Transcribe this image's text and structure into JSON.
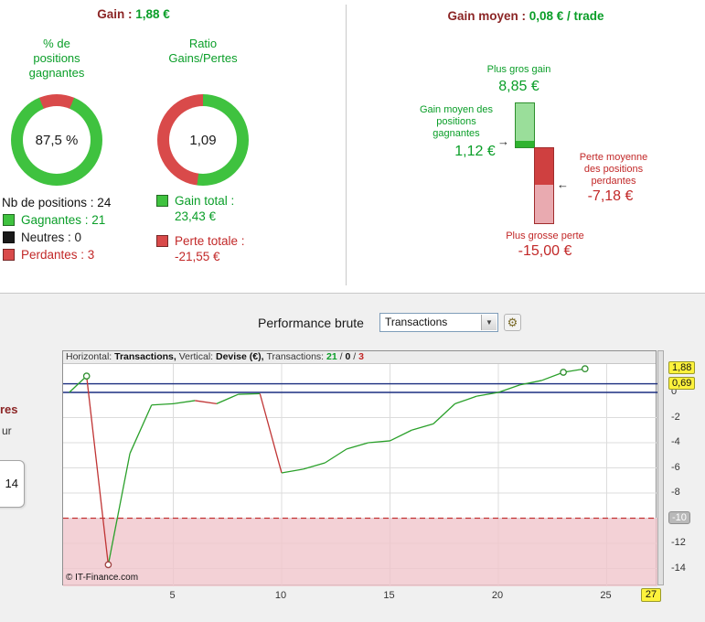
{
  "left_panel": {
    "header": {
      "label": "Gain :",
      "value": "1,88 €"
    },
    "donut_win": {
      "title": "% de\npositions\ngagnantes",
      "center": "87,5 %",
      "green_pct": 87.5,
      "green": "#3fc23f",
      "red": "#d94a4a"
    },
    "donut_ratio": {
      "title": "Ratio\nGains/Pertes",
      "center": "1,09",
      "green_pct": 52.1,
      "green": "#3fc23f",
      "red": "#d94a4a"
    },
    "positions": {
      "label": "Nb de positions : 24",
      "items": [
        {
          "label": "Gagnantes : 21",
          "color": "#3fc23f"
        },
        {
          "label": "Neutres : 0",
          "color": "#1a1a1a"
        },
        {
          "label": "Perdantes : 3",
          "color": "#d94a4a"
        }
      ]
    },
    "totals": [
      {
        "label": "Gain total :",
        "value": "23,43 €",
        "color": "#3fc23f"
      },
      {
        "label": "Perte totale :",
        "value": "-21,55 €",
        "color": "#d94a4a"
      }
    ]
  },
  "right_panel": {
    "header": {
      "label": "Gain moyen :",
      "value": "0,08 € / trade"
    },
    "bars": {
      "max_gain": {
        "label": "Plus gros gain",
        "value": "8,85 €"
      },
      "avg_gain": {
        "label": "Gain moyen des\npositions\ngagnantes",
        "value": "1,12 €",
        "arrow": "→"
      },
      "avg_loss": {
        "label": "Perte moyenne\ndes positions\nperdantes",
        "value": "-7,18 €",
        "arrow": "←"
      },
      "max_loss": {
        "label": "Plus grosse perte",
        "value": "-15,00 €"
      }
    },
    "bars_numeric": {
      "max_gain": 8.85,
      "avg_gain": 1.12,
      "avg_loss": -7.18,
      "max_loss": -15.0
    },
    "bar_colors": {
      "gain_light": "#9ade9a",
      "gain_dark": "#2fb32f",
      "gain_border": "#2d8f2d",
      "loss_dark": "#cf4040",
      "loss_light": "#e9aab0",
      "loss_border": "#a02c2c"
    }
  },
  "toolbar": {
    "title": "Performance brute",
    "dropdown_value": "Transactions",
    "settings_icon": "⚙",
    "chevron": "▼"
  },
  "side_fragment": {
    "line1": "res",
    "line2": "ur",
    "box_value": "14"
  },
  "chart_data": {
    "type": "line",
    "title": "Performance brute",
    "header_parts": [
      {
        "text": "Horizontal: ",
        "style": "plain"
      },
      {
        "text": "Transactions, ",
        "style": "bold"
      },
      {
        "text": "Vertical: ",
        "style": "plain"
      },
      {
        "text": "Devise (€), ",
        "style": "bold"
      },
      {
        "text": "Transactions: ",
        "style": "plain"
      },
      {
        "text": "21",
        "style": "green"
      },
      {
        "text": " / ",
        "style": "plain"
      },
      {
        "text": "0",
        "style": "bold"
      },
      {
        "text": " / ",
        "style": "plain"
      },
      {
        "text": "3",
        "style": "red"
      }
    ],
    "xlabel": "Transactions",
    "ylabel": "Devise (€)",
    "x": [
      1,
      2,
      3,
      4,
      5,
      6,
      7,
      8,
      9,
      10,
      11,
      12,
      13,
      14,
      15,
      16,
      17,
      18,
      19,
      20,
      21,
      22,
      23,
      24
    ],
    "values": [
      1.3,
      -13.7,
      -4.85,
      -1.0,
      -0.9,
      -0.65,
      -0.9,
      -0.15,
      -0.1,
      -6.4,
      -6.1,
      -5.6,
      -4.5,
      -4.0,
      -3.85,
      -3.0,
      -2.5,
      -0.9,
      -0.3,
      0.0,
      0.6,
      0.95,
      1.6,
      1.88
    ],
    "start_point": {
      "x": 0.2,
      "y": 0
    },
    "markers": [
      1,
      2,
      23,
      24
    ],
    "x_ticks": [
      5,
      10,
      15,
      20,
      25
    ],
    "x_badge": {
      "x": 27,
      "label": "27"
    },
    "y_ticks": [
      {
        "v": 0,
        "label": "0"
      },
      {
        "v": -2,
        "label": "-2"
      },
      {
        "v": -4,
        "label": "-4"
      },
      {
        "v": -6,
        "label": "-6"
      },
      {
        "v": -8,
        "label": "-8"
      },
      {
        "v": -10,
        "label": "-10",
        "badge": "gray"
      },
      {
        "v": -12,
        "label": "-12"
      },
      {
        "v": -14,
        "label": "-14"
      }
    ],
    "y_badges": [
      {
        "v": 1.88,
        "label": "1,88"
      },
      {
        "v": 0.69,
        "label": "0,69"
      }
    ],
    "levels": [
      {
        "v": 0.69,
        "color": "#1c2f80"
      },
      {
        "v": 0,
        "color": "#1c2f80"
      }
    ],
    "risk_level": -10,
    "xlim": [
      0,
      27
    ],
    "ylim": [
      -15.4,
      3.3
    ],
    "grid": true,
    "watermark": "© IT-Finance.com",
    "colors": {
      "up": "#2aa02a",
      "down": "#c03434",
      "risk_zone": "#f0c6cc",
      "risk_line": "#c23333",
      "grid": "#dcdcdc"
    }
  }
}
